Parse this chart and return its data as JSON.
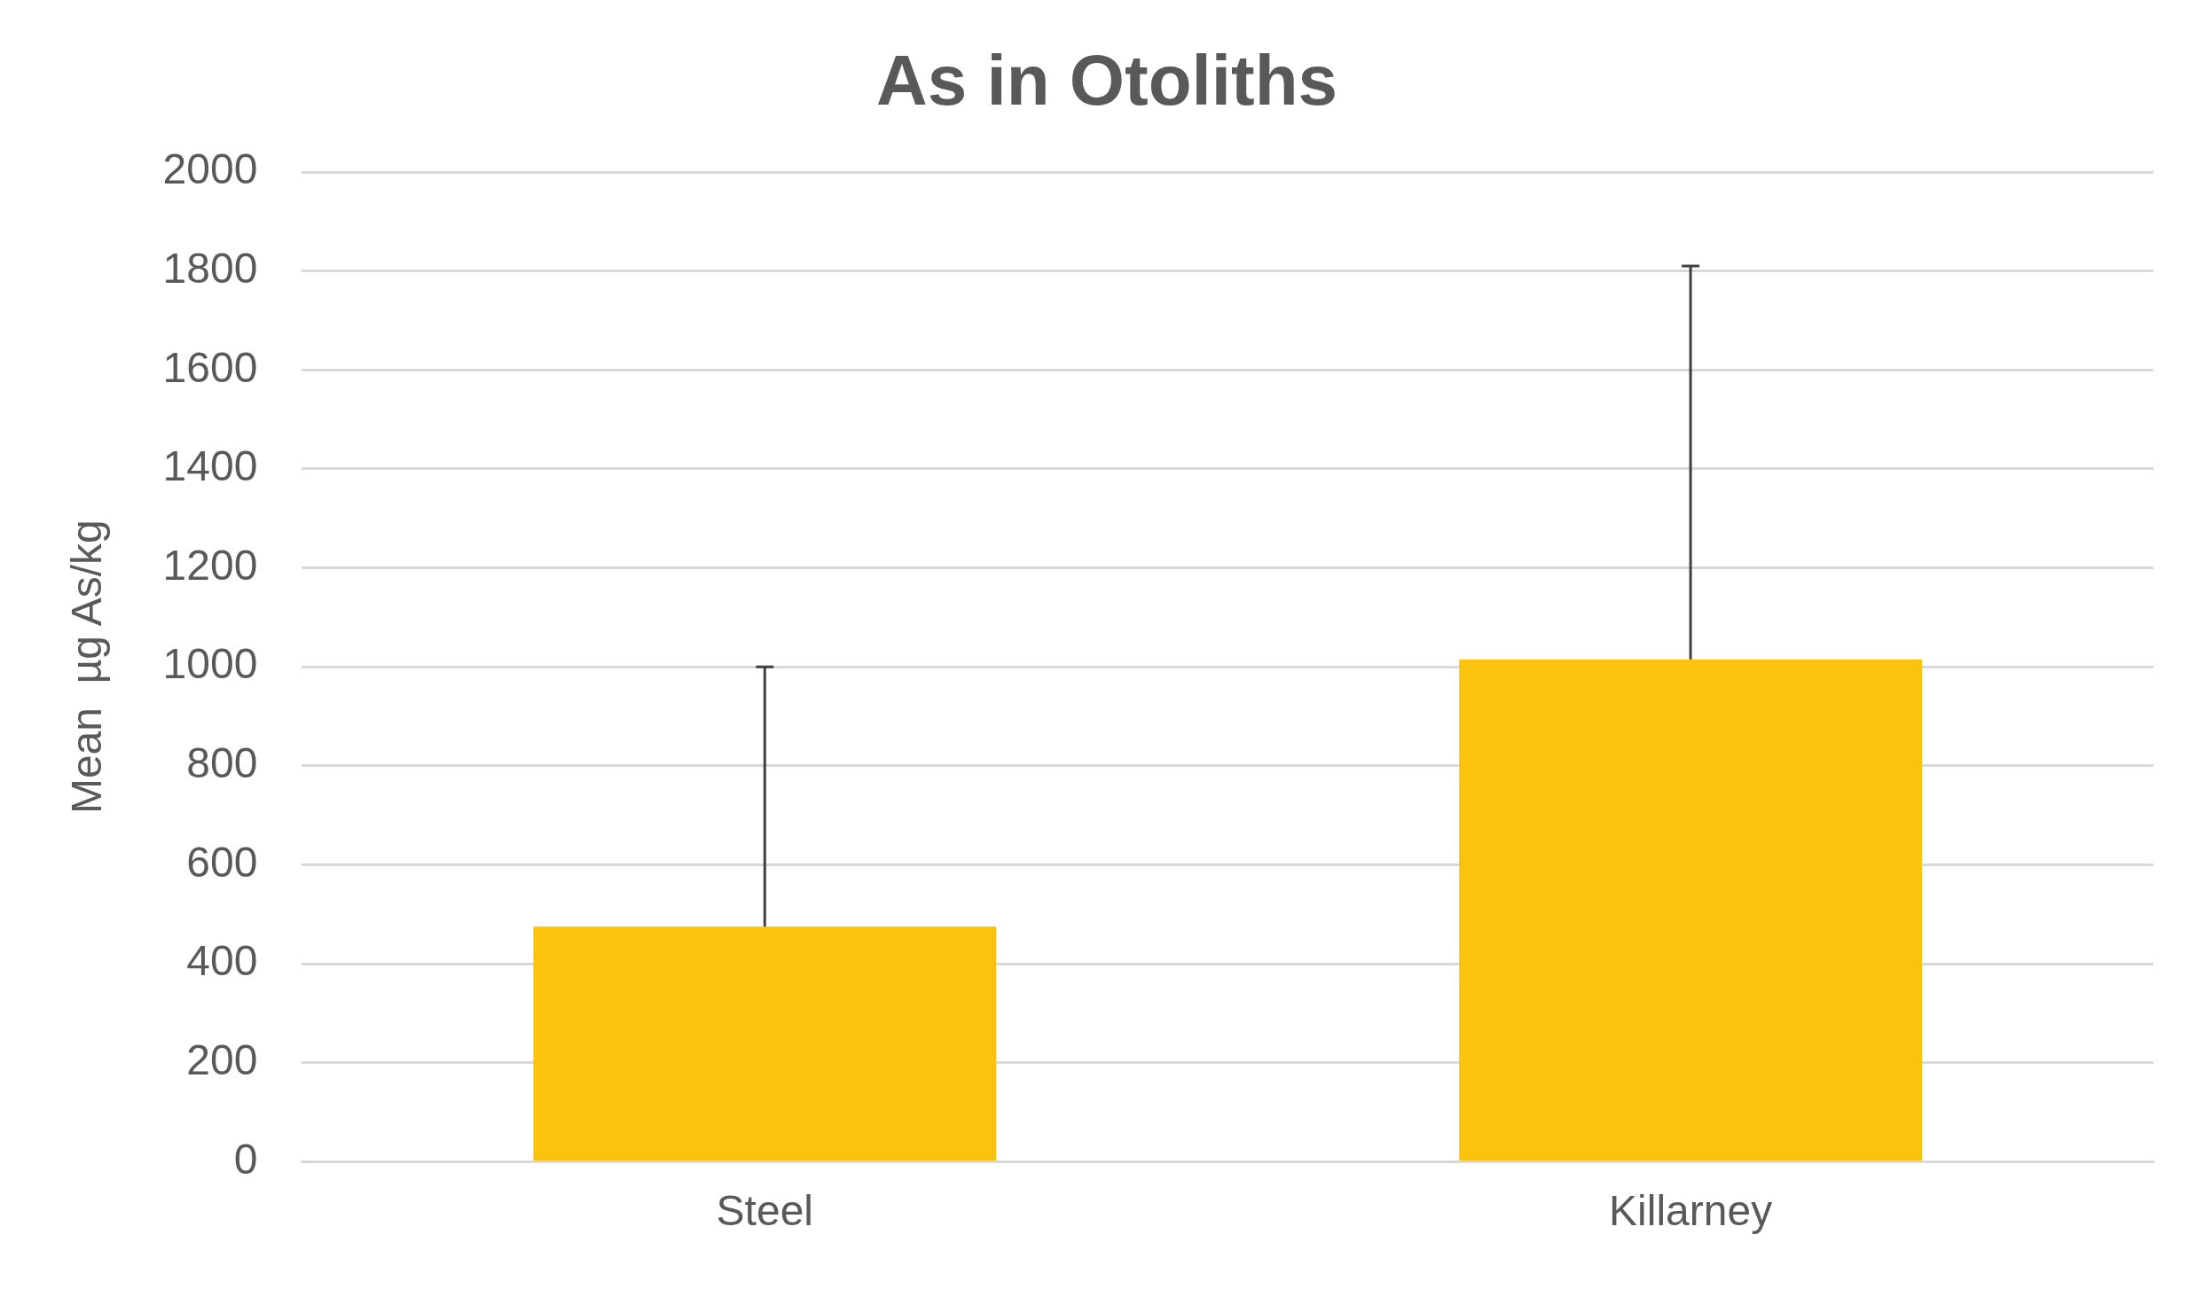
{
  "chart_data": {
    "type": "bar",
    "title": "As in Otoliths",
    "ylabel": "Mean  µg As/kg",
    "categories": [
      "Steel",
      "Killarney"
    ],
    "values": [
      475,
      1015
    ],
    "errors": [
      [
        475,
        1000
      ],
      [
        1015,
        1810
      ]
    ],
    "color": "#fbc20e",
    "ylim": [
      0,
      2000
    ],
    "yticks": [
      0,
      200,
      400,
      600,
      800,
      1000,
      1200,
      1400,
      1600,
      1800,
      2000
    ],
    "grid": "y",
    "legend": false
  }
}
